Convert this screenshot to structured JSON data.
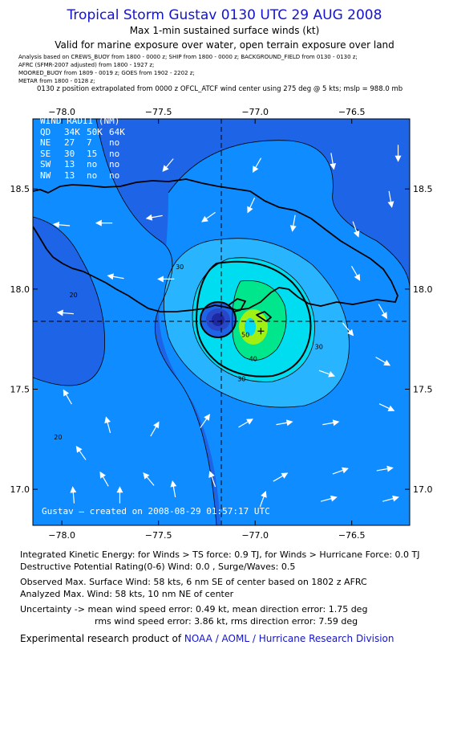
{
  "header": {
    "title": "Tropical Storm Gustav 0130 UTC 29 AUG 2008",
    "subtitle1": "Max 1-min sustained surface winds (kt)",
    "subtitle2": "Valid for marine exposure over water, open terrain exposure over land",
    "meta": [
      "Analysis based on  CREWS_BUOY from 1800 - 0000 z;  SHIP from 1800 - 0000 z;  BACKGROUND_FIELD from 0130 - 0130 z;",
      "AFRC  (SFMR-2007 adjusted) from 1800 - 1927 z;",
      "MOORED_BUOY from 1809 - 0019 z;  GOES from 1902 - 2202 z;",
      "METAR from 1800 - 0128 z;"
    ],
    "position_note": "0130 z position extrapolated from 0000 z OFCL_ATCF wind center using 275 deg @ 5 kts; mslp = 988.0 mb"
  },
  "wind_radii": {
    "title": "WIND RADII (NM)",
    "columns": [
      "QD",
      "34K",
      "50K",
      "64K"
    ],
    "rows": [
      [
        "NE",
        "27",
        "7",
        "no"
      ],
      [
        "SE",
        "30",
        "15",
        "no"
      ],
      [
        "SW",
        "13",
        "no",
        "no"
      ],
      [
        "NW",
        "13",
        "no",
        "no"
      ]
    ]
  },
  "credit": "Gustav  –  created on  2008-08-29  01:57:17  UTC",
  "footer": {
    "line1": "Integrated Kinetic Energy:  for Winds > TS force: 0.9 TJ,  for Winds > Hurricane Force: 0.0 TJ",
    "line2": "Destructive Potential Rating(0-6)   Wind: 0.0 , Surge/Waves: 0.5",
    "line3": "Observed Max. Surface Wind: 58 kts, 6 nm SE of center based on 1802 z AFRC",
    "line4": "Analyzed Max. Wind: 58 kts, 10 nm NE of center",
    "line5": "Uncertainty -> mean wind speed error: 0.49 kt,   mean direction error: 1.75 deg",
    "line6": "rms wind speed error: 3.86 kt,   rms direction error: 7.59 deg",
    "line7_prefix": "Experimental research product of ",
    "line7_link": "NOAA / AOML / Hurricane Research Division"
  },
  "chart_data": {
    "type": "contour_map",
    "x_axis": {
      "ticks": [
        -78.0,
        -77.5,
        -77.0,
        -76.5
      ],
      "labels": [
        "−78.0",
        "−77.5",
        "−77.0",
        "−76.5"
      ],
      "range": [
        -78.15,
        -76.2
      ]
    },
    "y_axis": {
      "ticks": [
        17.0,
        17.5,
        18.0,
        18.5
      ],
      "labels": [
        "17.0",
        "17.5",
        "18.0",
        "18.5"
      ],
      "range": [
        16.82,
        18.85
      ]
    },
    "center": {
      "lon": -77.12,
      "lat": 17.81
    },
    "max_wind_marker": {
      "lon": -76.97,
      "lat": 17.79
    },
    "contour_labels": [
      {
        "text": "30",
        "lon": -77.39,
        "lat": 18.1
      },
      {
        "text": "20",
        "lon": -77.94,
        "lat": 17.96
      },
      {
        "text": "30",
        "lon": -76.67,
        "lat": 17.7
      },
      {
        "text": "30",
        "lon": -77.07,
        "lat": 17.54
      },
      {
        "text": "40",
        "lon": -77.01,
        "lat": 17.64
      },
      {
        "text": "50",
        "lon": -77.05,
        "lat": 17.76
      },
      {
        "text": "20",
        "lon": -78.02,
        "lat": 17.25
      }
    ],
    "colors": {
      "level_lt20": "#1e64e6",
      "level_20_30": "#0f8cff",
      "level_30_40": "#28b4ff",
      "level_40_50": "#00dcf0",
      "level_50_55": "#00e68c",
      "level_gt55": "#a0f014",
      "eye_dark": "#1e28a0",
      "land_line": "#000000"
    },
    "wind_vectors": [
      {
        "lon": -76.26,
        "lat": 18.68,
        "dir": 180
      },
      {
        "lon": -76.6,
        "lat": 18.64,
        "dir": 170
      },
      {
        "lon": -76.99,
        "lat": 18.62,
        "dir": 210
      },
      {
        "lon": -77.45,
        "lat": 18.62,
        "dir": 220
      },
      {
        "lon": -76.3,
        "lat": 18.45,
        "dir": 170
      },
      {
        "lon": -76.48,
        "lat": 18.3,
        "dir": 160
      },
      {
        "lon": -76.8,
        "lat": 18.33,
        "dir": 190
      },
      {
        "lon": -77.02,
        "lat": 18.42,
        "dir": 205
      },
      {
        "lon": -77.24,
        "lat": 18.36,
        "dir": 235
      },
      {
        "lon": -77.52,
        "lat": 18.36,
        "dir": 260
      },
      {
        "lon": -77.78,
        "lat": 18.33,
        "dir": 270
      },
      {
        "lon": -78.0,
        "lat": 18.32,
        "dir": 275
      },
      {
        "lon": -77.72,
        "lat": 18.06,
        "dir": 280
      },
      {
        "lon": -77.46,
        "lat": 18.05,
        "dir": 270
      },
      {
        "lon": -77.98,
        "lat": 17.88,
        "dir": 275
      },
      {
        "lon": -76.48,
        "lat": 18.08,
        "dir": 150
      },
      {
        "lon": -76.34,
        "lat": 17.89,
        "dir": 150
      },
      {
        "lon": -76.52,
        "lat": 17.8,
        "dir": 140
      },
      {
        "lon": -76.34,
        "lat": 17.64,
        "dir": 120
      },
      {
        "lon": -76.63,
        "lat": 17.58,
        "dir": 110
      },
      {
        "lon": -76.32,
        "lat": 17.41,
        "dir": 115
      },
      {
        "lon": -76.61,
        "lat": 17.33,
        "dir": 80
      },
      {
        "lon": -76.85,
        "lat": 17.33,
        "dir": 80
      },
      {
        "lon": -77.05,
        "lat": 17.33,
        "dir": 60
      },
      {
        "lon": -77.26,
        "lat": 17.34,
        "dir": 35
      },
      {
        "lon": -77.52,
        "lat": 17.3,
        "dir": 30
      },
      {
        "lon": -77.76,
        "lat": 17.32,
        "dir": 345
      },
      {
        "lon": -77.97,
        "lat": 17.46,
        "dir": 330
      },
      {
        "lon": -77.9,
        "lat": 17.18,
        "dir": 325
      },
      {
        "lon": -77.78,
        "lat": 17.05,
        "dir": 330
      },
      {
        "lon": -77.55,
        "lat": 17.05,
        "dir": 320
      },
      {
        "lon": -77.22,
        "lat": 17.05,
        "dir": 340
      },
      {
        "lon": -76.87,
        "lat": 17.06,
        "dir": 60
      },
      {
        "lon": -76.56,
        "lat": 17.09,
        "dir": 70
      },
      {
        "lon": -76.33,
        "lat": 17.1,
        "dir": 80
      },
      {
        "lon": -77.94,
        "lat": 16.97,
        "dir": 355
      },
      {
        "lon": -77.7,
        "lat": 16.97,
        "dir": 0
      },
      {
        "lon": -77.42,
        "lat": 17.0,
        "dir": 350
      },
      {
        "lon": -76.96,
        "lat": 16.95,
        "dir": 20
      },
      {
        "lon": -76.62,
        "lat": 16.95,
        "dir": 75
      },
      {
        "lon": -76.3,
        "lat": 16.95,
        "dir": 75
      }
    ]
  }
}
